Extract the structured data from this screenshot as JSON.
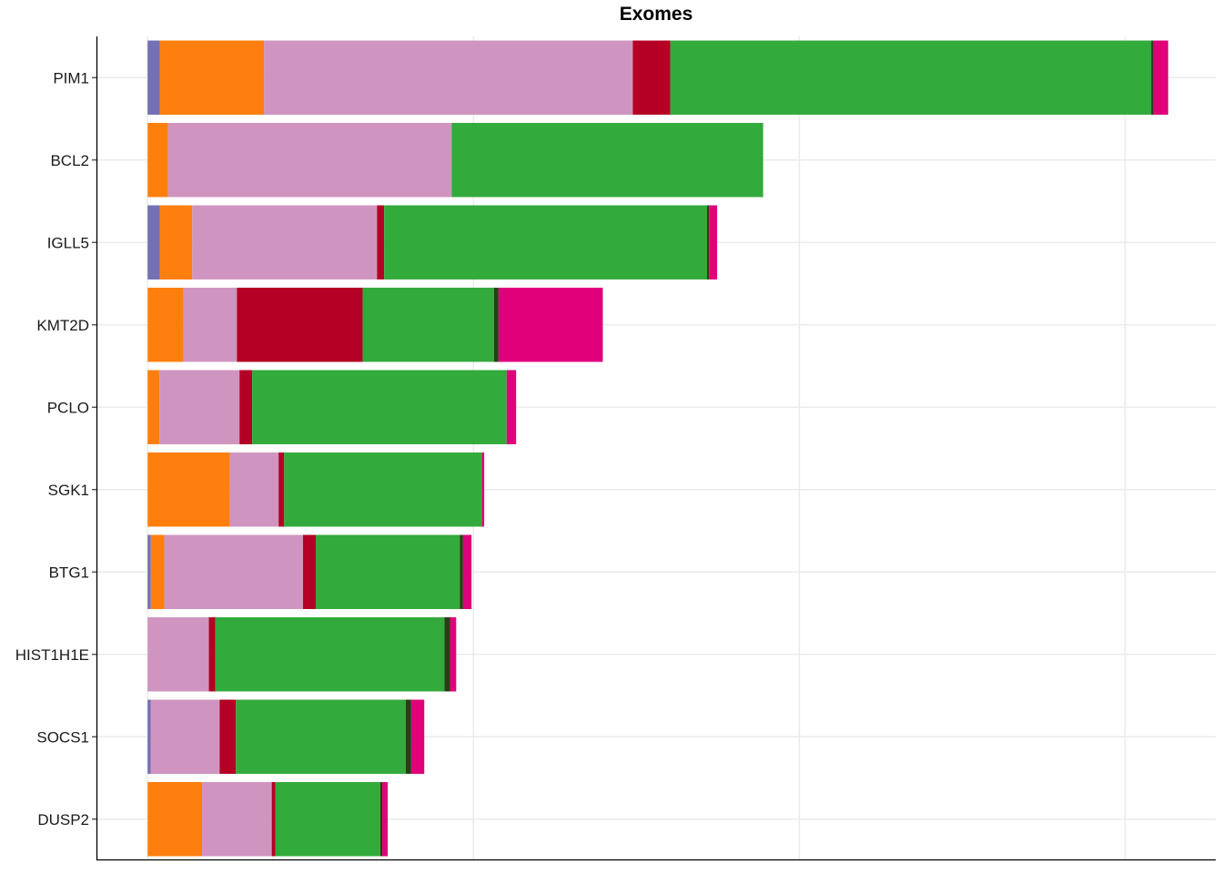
{
  "chart_data": {
    "type": "bar",
    "orientation": "horizontal",
    "stacked": true,
    "title": "Exomes",
    "xlabel": "",
    "ylabel": "",
    "grid": true,
    "legend": "none",
    "categories": [
      "PIM1",
      "BCL2",
      "IGLL5",
      "KMT2D",
      "PCLO",
      "SGK1",
      "BTG1",
      "HIST1H1E",
      "SOCS1",
      "DUSP2"
    ],
    "series": [
      {
        "color": "#7570b3",
        "values": [
          3.8,
          0,
          3.8,
          0,
          0,
          0,
          1.0,
          0,
          1.0,
          0
        ]
      },
      {
        "color": "#ff7f0e",
        "values": [
          31.9,
          6.3,
          9.9,
          11.0,
          3.6,
          25.2,
          4.1,
          0,
          0,
          16.7
        ]
      },
      {
        "color": "#cf95c0",
        "values": [
          113.2,
          87.0,
          56.7,
          16.4,
          24.6,
          15.0,
          42.6,
          18.8,
          21.1,
          21.4
        ]
      },
      {
        "color": "#b30024",
        "values": [
          11.5,
          0,
          2.2,
          38.6,
          3.9,
          1.7,
          3.9,
          2.0,
          5.0,
          1.1
        ]
      },
      {
        "color": "#33aa3c",
        "values": [
          147.6,
          95.6,
          99.1,
          40.3,
          78.1,
          60.7,
          44.2,
          70.3,
          52.1,
          32.2
        ]
      },
      {
        "color": "#2a3d16",
        "values": [
          0.7,
          0,
          0.6,
          1.4,
          0,
          0,
          1.0,
          1.7,
          1.7,
          0.6
        ]
      },
      {
        "color": "#e0007a",
        "values": [
          4.5,
          0,
          2.5,
          32.0,
          2.9,
          0.7,
          2.6,
          1.9,
          4.0,
          1.7
        ]
      }
    ],
    "xlim": [
      -15.7,
      327.8
    ]
  }
}
